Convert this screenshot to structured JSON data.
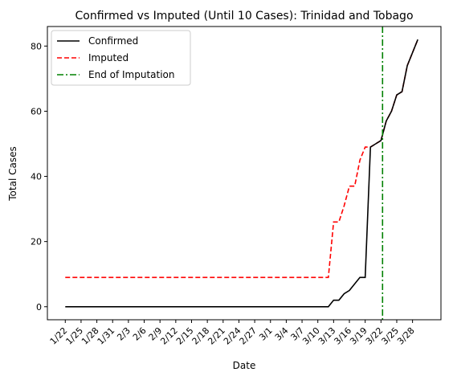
{
  "chart_data": {
    "type": "line",
    "title": "Confirmed vs Imputed (Until 10 Cases): Trinidad and Tobago",
    "xlabel": "Date",
    "ylabel": "Total Cases",
    "x": [
      "1/22",
      "1/23",
      "1/24",
      "1/25",
      "1/26",
      "1/27",
      "1/28",
      "1/29",
      "1/30",
      "1/31",
      "2/1",
      "2/2",
      "2/3",
      "2/4",
      "2/5",
      "2/6",
      "2/7",
      "2/8",
      "2/9",
      "2/10",
      "2/11",
      "2/12",
      "2/13",
      "2/14",
      "2/15",
      "2/16",
      "2/17",
      "2/18",
      "2/19",
      "2/20",
      "2/21",
      "2/22",
      "2/23",
      "2/24",
      "2/25",
      "2/26",
      "2/27",
      "2/28",
      "2/29",
      "3/1",
      "3/2",
      "3/3",
      "3/4",
      "3/5",
      "3/6",
      "3/7",
      "3/8",
      "3/9",
      "3/10",
      "3/11",
      "3/12",
      "3/13",
      "3/14",
      "3/15",
      "3/16",
      "3/17",
      "3/18",
      "3/19",
      "3/20",
      "3/21",
      "3/22",
      "3/23",
      "3/24",
      "3/25",
      "3/26",
      "3/27",
      "3/28",
      "3/29",
      "3/30"
    ],
    "xticks": [
      "1/22",
      "1/25",
      "1/28",
      "1/31",
      "2/3",
      "2/6",
      "2/9",
      "2/12",
      "2/15",
      "2/18",
      "2/21",
      "2/24",
      "2/27",
      "3/1",
      "3/4",
      "3/7",
      "3/10",
      "3/13",
      "3/16",
      "3/19",
      "3/22",
      "3/25",
      "3/28"
    ],
    "yticks": [
      0,
      20,
      40,
      60,
      80
    ],
    "ylim": [
      -4,
      86
    ],
    "series": [
      {
        "name": "Confirmed",
        "color": "#000000",
        "style": "solid",
        "values": [
          0,
          0,
          0,
          0,
          0,
          0,
          0,
          0,
          0,
          0,
          0,
          0,
          0,
          0,
          0,
          0,
          0,
          0,
          0,
          0,
          0,
          0,
          0,
          0,
          0,
          0,
          0,
          0,
          0,
          0,
          0,
          0,
          0,
          0,
          0,
          0,
          0,
          0,
          0,
          0,
          0,
          0,
          0,
          0,
          0,
          0,
          0,
          0,
          0,
          0,
          0,
          2,
          2,
          4,
          5,
          7,
          9,
          9,
          49,
          50,
          51,
          57,
          60,
          65,
          66,
          74,
          78,
          82,
          null
        ]
      },
      {
        "name": "Imputed",
        "color": "#ff0000",
        "style": "dashed",
        "values": [
          9,
          9,
          9,
          9,
          9,
          9,
          9,
          9,
          9,
          9,
          9,
          9,
          9,
          9,
          9,
          9,
          9,
          9,
          9,
          9,
          9,
          9,
          9,
          9,
          9,
          9,
          9,
          9,
          9,
          9,
          9,
          9,
          9,
          9,
          9,
          9,
          9,
          9,
          9,
          9,
          9,
          9,
          9,
          9,
          9,
          9,
          9,
          9,
          9,
          9,
          9,
          26,
          26,
          31,
          37,
          37,
          45,
          49,
          49,
          50,
          51,
          57,
          60,
          65,
          66,
          74,
          78,
          82,
          null
        ]
      }
    ],
    "vline": {
      "name": "End of Imputation",
      "color": "#008000",
      "style": "dashdot",
      "x": 60.3
    },
    "legend_position": "top-left",
    "grid": false
  }
}
